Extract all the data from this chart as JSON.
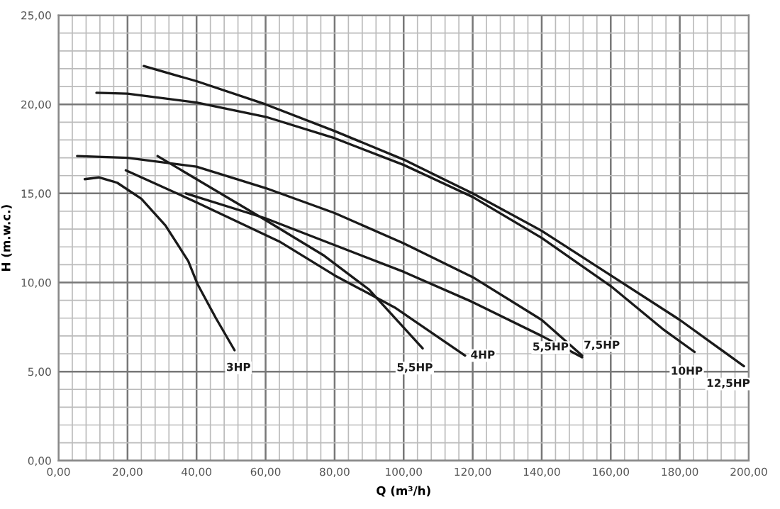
{
  "chart_data": {
    "type": "line",
    "xlabel": "Q (m³/h)",
    "ylabel": "H (m.w.c.)",
    "xlim": [
      0,
      200
    ],
    "ylim": [
      0,
      25
    ],
    "xticks": [
      {
        "value": 0,
        "label": "0,00"
      },
      {
        "value": 20,
        "label": "20,00"
      },
      {
        "value": 40,
        "label": "40,00"
      },
      {
        "value": 60,
        "label": "60,00"
      },
      {
        "value": 80,
        "label": "80,00"
      },
      {
        "value": 100,
        "label": "100,00"
      },
      {
        "value": 120,
        "label": "120,00"
      },
      {
        "value": 140,
        "label": "140,00"
      },
      {
        "value": 160,
        "label": "160,00"
      },
      {
        "value": 180,
        "label": "180,00"
      },
      {
        "value": 200,
        "label": "200,00"
      }
    ],
    "yticks": [
      {
        "value": 0,
        "label": "0,00"
      },
      {
        "value": 5,
        "label": "5,00"
      },
      {
        "value": 10,
        "label": "10,00"
      },
      {
        "value": 15,
        "label": "15,00"
      },
      {
        "value": 20,
        "label": "20,00"
      },
      {
        "value": 25,
        "label": "25,00"
      }
    ],
    "grid": true,
    "marker": "none",
    "line_style": "solid",
    "legend": false,
    "series": [
      {
        "name": "3HP",
        "color": "#1a1a1a",
        "x": [
          7.6,
          11.7,
          17,
          24,
          31,
          37.6,
          40.3,
          45.6,
          51
        ],
        "values": [
          15.8,
          15.9,
          15.6,
          14.7,
          13.2,
          11.2,
          9.9,
          8.0,
          6.2
        ]
      },
      {
        "name": "5,5HP",
        "color": "#1a1a1a",
        "x": [
          28.7,
          40,
          60,
          77,
          90,
          105.5
        ],
        "values": [
          17.1,
          15.8,
          13.5,
          11.5,
          9.6,
          6.3
        ]
      },
      {
        "name": "4HP",
        "color": "#1a1a1a",
        "x": [
          19.5,
          40,
          64,
          80,
          97.4,
          117.8
        ],
        "values": [
          16.3,
          14.5,
          12.3,
          10.4,
          8.6,
          5.9
        ]
      },
      {
        "name": "5,5HP",
        "color": "#1a1a1a",
        "x": [
          36.9,
          60,
          80,
          100,
          120,
          140,
          151.7
        ],
        "values": [
          15.0,
          13.6,
          12.1,
          10.6,
          8.9,
          7.0,
          5.8
        ]
      },
      {
        "name": "7,5HP",
        "color": "#1a1a1a",
        "x": [
          5.4,
          20,
          40,
          60,
          80,
          100,
          120,
          140,
          151.7
        ],
        "values": [
          17.1,
          17.0,
          16.5,
          15.3,
          13.9,
          12.2,
          10.3,
          7.9,
          5.9
        ]
      },
      {
        "name": "10HP",
        "color": "#1a1a1a",
        "x": [
          11,
          20,
          40,
          60,
          80,
          100,
          120,
          140,
          160,
          175,
          184.3
        ],
        "values": [
          20.65,
          20.6,
          20.1,
          19.3,
          18.1,
          16.6,
          14.8,
          12.5,
          9.8,
          7.4,
          6.1
        ]
      },
      {
        "name": "12,5HP",
        "color": "#1a1a1a",
        "x": [
          24.7,
          40,
          60,
          80,
          100,
          120,
          140,
          160,
          180,
          198.6
        ],
        "values": [
          22.15,
          21.3,
          20.0,
          18.5,
          16.9,
          15.0,
          12.9,
          10.4,
          7.9,
          5.3
        ]
      }
    ]
  }
}
